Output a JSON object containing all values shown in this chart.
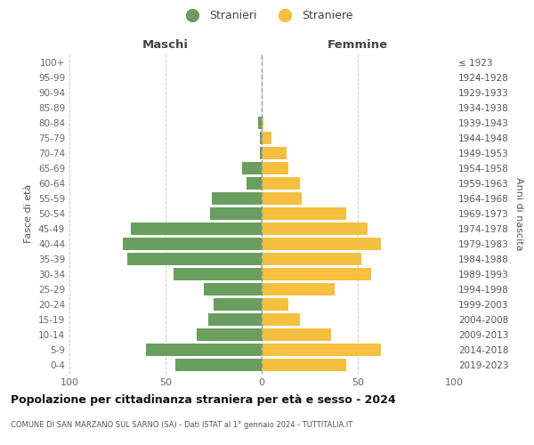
{
  "age_groups": [
    "100+",
    "95-99",
    "90-94",
    "85-89",
    "80-84",
    "75-79",
    "70-74",
    "65-69",
    "60-64",
    "55-59",
    "50-54",
    "45-49",
    "40-44",
    "35-39",
    "30-34",
    "25-29",
    "20-24",
    "15-19",
    "10-14",
    "5-9",
    "0-4"
  ],
  "birth_years": [
    "≤ 1923",
    "1924-1928",
    "1929-1933",
    "1934-1938",
    "1939-1943",
    "1944-1948",
    "1949-1953",
    "1954-1958",
    "1959-1963",
    "1964-1968",
    "1969-1973",
    "1974-1978",
    "1979-1983",
    "1984-1988",
    "1989-1993",
    "1994-1998",
    "1999-2003",
    "2004-2008",
    "2009-2013",
    "2014-2018",
    "2019-2023"
  ],
  "maschi": [
    0,
    0,
    0,
    0,
    2,
    1,
    1,
    10,
    8,
    26,
    27,
    68,
    72,
    70,
    46,
    30,
    25,
    28,
    34,
    60,
    45
  ],
  "femmine": [
    0,
    0,
    0,
    0,
    1,
    5,
    13,
    14,
    20,
    21,
    44,
    55,
    62,
    52,
    57,
    38,
    14,
    20,
    36,
    62,
    44
  ],
  "maschi_color": "#6a9e5e",
  "femmine_color": "#f5c040",
  "background_color": "#ffffff",
  "grid_color": "#cccccc",
  "title": "Popolazione per cittadinanza straniera per età e sesso - 2024",
  "subtitle": "COMUNE DI SAN MARZANO SUL SARNO (SA) - Dati ISTAT al 1° gennaio 2024 - TUTTITALIA.IT",
  "left_label": "Maschi",
  "right_label": "Femmine",
  "ylabel_left": "Fasce di età",
  "ylabel_right": "Anni di nascita",
  "legend_maschi": "Stranieri",
  "legend_femmine": "Straniere",
  "xlim": 100,
  "bar_height": 0.82
}
